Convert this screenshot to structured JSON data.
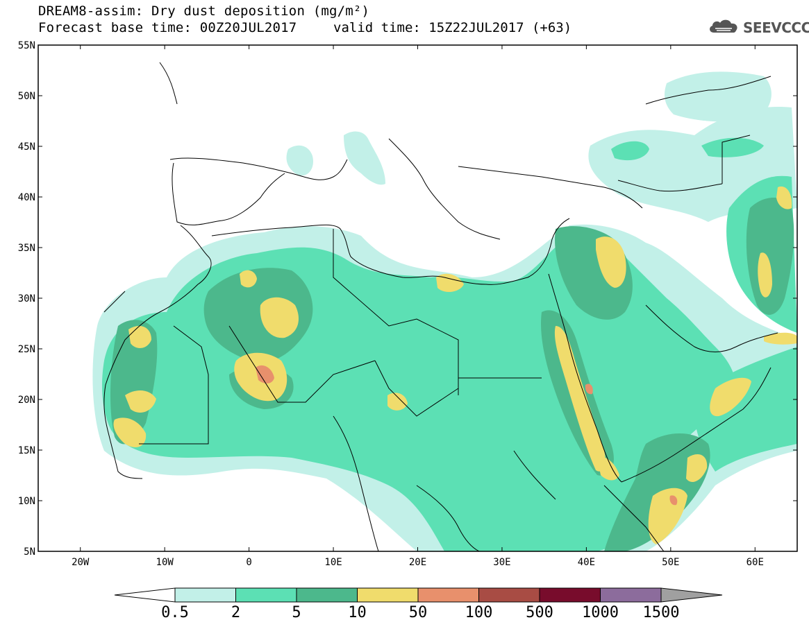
{
  "title": {
    "line1": "DREAM8-assim: Dry dust deposition (mg/m²)",
    "line2": "Forecast base time: 00Z20JUL2017",
    "valid": "valid time: 15Z22JUL2017 (+63)"
  },
  "logo": {
    "text": "SEEVCCC",
    "icon": "cloud-icon"
  },
  "map": {
    "lon_range": [
      -25,
      65
    ],
    "lat_range": [
      5,
      55
    ],
    "lat_ticks": [
      "55N",
      "50N",
      "45N",
      "40N",
      "35N",
      "30N",
      "25N",
      "20N",
      "15N",
      "10N",
      "5N"
    ],
    "lon_ticks": [
      "20W",
      "10W",
      "0",
      "10E",
      "20E",
      "30E",
      "40E",
      "50E",
      "60E"
    ]
  },
  "colorbar": {
    "labels": [
      "0.5",
      "2",
      "5",
      "10",
      "50",
      "100",
      "500",
      "1000",
      "1500"
    ],
    "colors": [
      "#c2f0e8",
      "#5ce0b4",
      "#4cb88c",
      "#f0dc6c",
      "#e8906c",
      "#a84c44",
      "#780c2c",
      "#8c6c9c"
    ],
    "under_color": "#ffffff",
    "over_color": "#a0a0a0"
  }
}
